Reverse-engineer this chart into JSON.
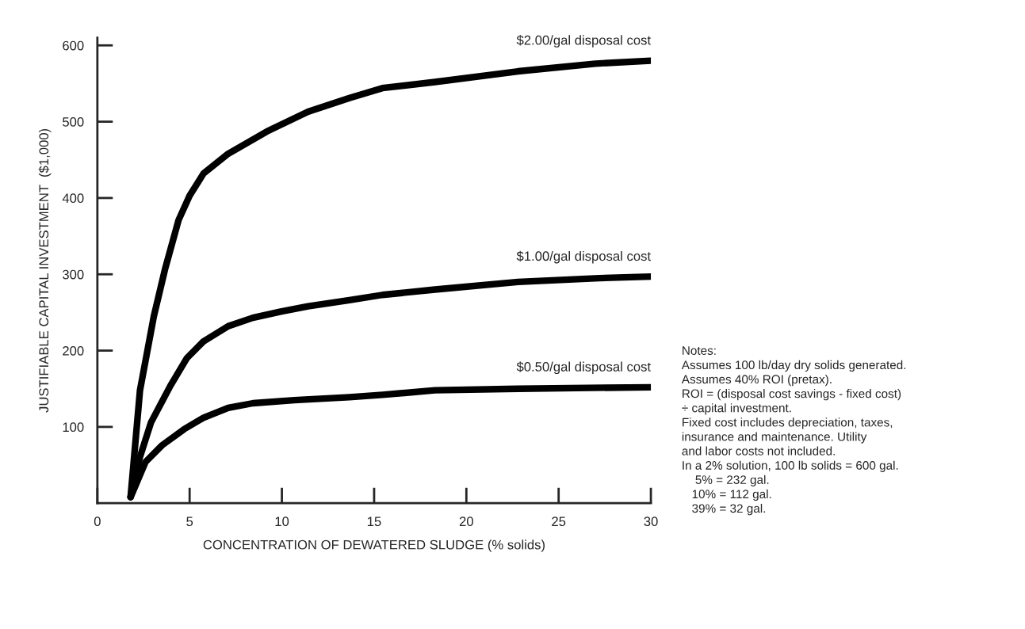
{
  "chart_data": {
    "type": "line",
    "xlabel": "CONCENTRATION OF DEWATERED SLUDGE (% solids)",
    "ylabel": "JUSTIFIABLE CAPITAL INVESTMENT  ($1,000)",
    "series": [
      {
        "name": "$2.00/gal disposal cost",
        "color": "#000000",
        "x": [
          1.8,
          2.31,
          3.06,
          3.66,
          4.4,
          5.0,
          5.75,
          7.09,
          9.18,
          11.42,
          13.66,
          15.45,
          18.3,
          22.8,
          27,
          30
        ],
        "values": [
          8,
          148,
          245,
          306,
          371,
          403,
          432,
          458,
          487,
          513,
          531,
          544,
          552,
          566,
          576,
          580
        ]
      },
      {
        "name": "$1.00/gal disposal cost",
        "color": "#000000",
        "x": [
          1.8,
          2.3,
          2.91,
          3.96,
          4.85,
          5.75,
          7.09,
          8.43,
          9.93,
          11.42,
          13.66,
          15.45,
          18.3,
          22.8,
          27.2,
          30
        ],
        "values": [
          8,
          60,
          106,
          154,
          190,
          212,
          232,
          243,
          251,
          258,
          266,
          273,
          280,
          290,
          295,
          297
        ]
      },
      {
        "name": "$0.50/gal disposal cost",
        "color": "#000000",
        "x": [
          1.8,
          2.61,
          3.51,
          4.7,
          5.75,
          7.09,
          8.43,
          10.67,
          13.66,
          15.45,
          18.3,
          22.8,
          30
        ],
        "values": [
          8,
          54,
          76,
          97,
          112,
          125,
          131,
          135,
          139,
          142,
          148,
          150,
          152
        ]
      }
    ],
    "xlim": [
      0,
      30
    ],
    "xticks": [
      0,
      5,
      10,
      15,
      20,
      25,
      30
    ],
    "ylim": [
      0,
      610
    ],
    "yticks": [
      100,
      200,
      300,
      400,
      500,
      600
    ],
    "grid": false,
    "legend": false,
    "marker": "none",
    "line_style": "solid",
    "annotations": [
      "Notes:\nAssumes 100 lb/day dry solids generated.\nAssumes 40% ROI (pretax).\nROI = (disposal cost savings - fixed cost)\n÷ capital investment.\nFixed cost includes depreciation, taxes,\ninsurance and maintenance. Utility\nand labor costs not included.\nIn a 2% solution, 100 lb solids = 600 gal.\n    5% = 232 gal.\n   10% = 112 gal.\n   39% = 32 gal."
    ]
  }
}
